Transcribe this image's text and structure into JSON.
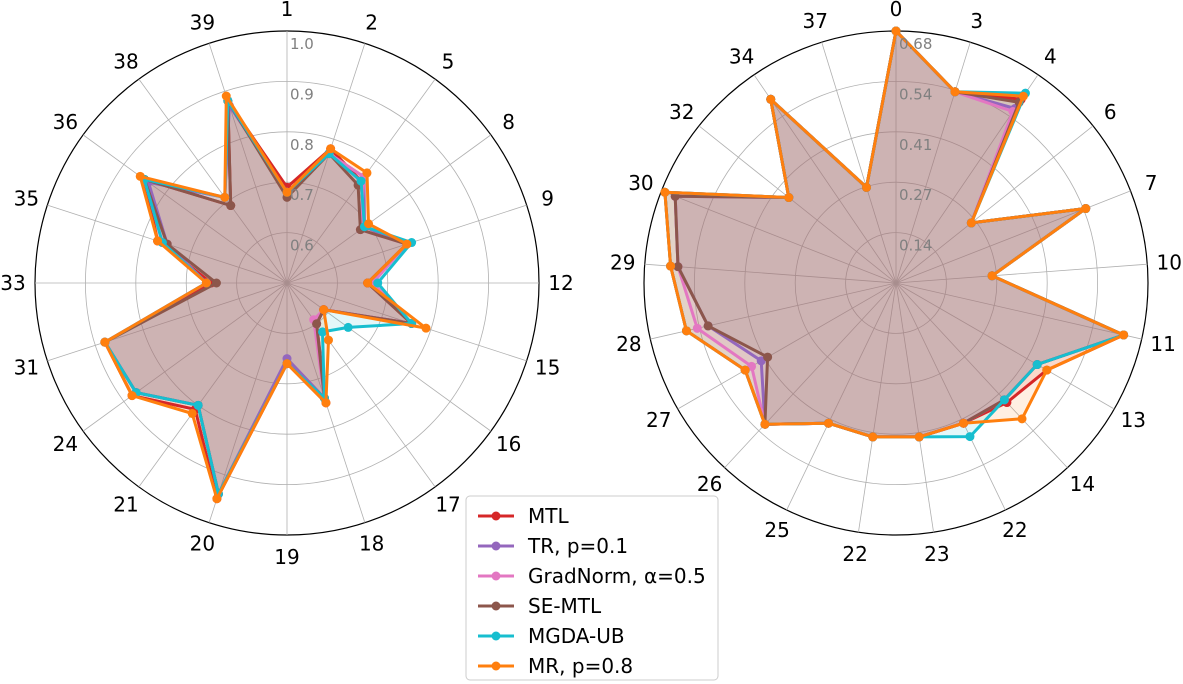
{
  "chart_data": [
    {
      "type": "radar",
      "r_range": [
        0.5,
        1.0
      ],
      "r_ticks": [
        "0.6",
        "0.7",
        "0.8",
        "0.9",
        "1.0"
      ],
      "r_tick_values": [
        0.6,
        0.7,
        0.8,
        0.9,
        1.0
      ],
      "categories": [
        "1",
        "2",
        "5",
        "8",
        "9",
        "12",
        "15",
        "16",
        "17",
        "18",
        "19",
        "20",
        "21",
        "24",
        "31",
        "33",
        "35",
        "36",
        "38",
        "39"
      ],
      "series": [
        {
          "name": "MTL",
          "values": [
            0.69,
            0.78,
            0.75,
            0.69,
            0.75,
            0.66,
            0.76,
            0.59,
            0.6,
            0.75,
            0.66,
            0.95,
            0.81,
            0.88,
            0.88,
            0.65,
            0.77,
            0.85,
            0.69,
            0.88
          ]
        },
        {
          "name": "TR, p=0.1",
          "values": [
            0.68,
            0.77,
            0.76,
            0.69,
            0.75,
            0.67,
            0.76,
            0.59,
            0.6,
            0.74,
            0.65,
            0.94,
            0.8,
            0.87,
            0.88,
            0.66,
            0.75,
            0.84,
            0.71,
            0.87
          ]
        },
        {
          "name": "GradNorm, α=0.5",
          "values": [
            0.68,
            0.77,
            0.76,
            0.68,
            0.75,
            0.67,
            0.76,
            0.59,
            0.59,
            0.74,
            0.66,
            0.94,
            0.8,
            0.87,
            0.88,
            0.66,
            0.76,
            0.85,
            0.71,
            0.88
          ]
        },
        {
          "name": "SE-MTL",
          "values": [
            0.67,
            0.77,
            0.74,
            0.68,
            0.75,
            0.66,
            0.76,
            0.59,
            0.6,
            0.74,
            0.66,
            0.94,
            0.8,
            0.87,
            0.88,
            0.64,
            0.75,
            0.85,
            0.69,
            0.88
          ]
        },
        {
          "name": "MGDA-UB",
          "values": [
            0.68,
            0.77,
            0.75,
            0.69,
            0.76,
            0.68,
            0.76,
            0.65,
            0.62,
            0.74,
            0.66,
            0.94,
            0.8,
            0.87,
            0.88,
            0.66,
            0.76,
            0.85,
            0.71,
            0.88
          ]
        },
        {
          "name": "MR, p=0.8",
          "values": [
            0.68,
            0.78,
            0.77,
            0.7,
            0.75,
            0.66,
            0.79,
            0.59,
            0.64,
            0.75,
            0.66,
            0.95,
            0.82,
            0.88,
            0.88,
            0.66,
            0.77,
            0.86,
            0.71,
            0.89
          ]
        }
      ]
    },
    {
      "type": "radar",
      "r_range": [
        0.0,
        0.68
      ],
      "r_ticks": [
        "0.14",
        "0.27",
        "0.41",
        "0.54",
        "0.68"
      ],
      "r_tick_values": [
        0.136,
        0.272,
        0.408,
        0.544,
        0.68
      ],
      "categories": [
        "0",
        "3",
        "4",
        "6",
        "7",
        "10",
        "11",
        "13",
        "14",
        "22",
        "23",
        "22b",
        "25",
        "26",
        "27",
        "28",
        "29",
        "30",
        "32",
        "34",
        "37"
      ],
      "series": [
        {
          "name": "MTL",
          "values": [
            0.68,
            0.54,
            0.6,
            0.26,
            0.55,
            0.26,
            0.63,
            0.47,
            0.44,
            0.42,
            0.42,
            0.42,
            0.42,
            0.52,
            0.47,
            0.58,
            0.61,
            0.67,
            0.37,
            0.6,
            0.27
          ]
        },
        {
          "name": "TR, p=0.1",
          "values": [
            0.68,
            0.54,
            0.57,
            0.26,
            0.55,
            0.26,
            0.63,
            0.44,
            0.43,
            0.42,
            0.42,
            0.42,
            0.42,
            0.52,
            0.42,
            0.52,
            0.59,
            0.64,
            0.37,
            0.6,
            0.27
          ]
        },
        {
          "name": "GradNorm, α=0.5",
          "values": [
            0.68,
            0.54,
            0.56,
            0.26,
            0.55,
            0.26,
            0.63,
            0.44,
            0.43,
            0.42,
            0.42,
            0.42,
            0.42,
            0.52,
            0.45,
            0.55,
            0.59,
            0.64,
            0.37,
            0.6,
            0.27
          ]
        },
        {
          "name": "SE-MTL",
          "values": [
            0.68,
            0.54,
            0.59,
            0.26,
            0.55,
            0.26,
            0.63,
            0.44,
            0.43,
            0.42,
            0.42,
            0.42,
            0.42,
            0.52,
            0.4,
            0.52,
            0.59,
            0.64,
            0.37,
            0.6,
            0.27
          ]
        },
        {
          "name": "MGDA-UB",
          "values": [
            0.68,
            0.54,
            0.62,
            0.26,
            0.55,
            0.26,
            0.63,
            0.44,
            0.43,
            0.46,
            0.42,
            0.42,
            0.42,
            0.52,
            0.47,
            0.58,
            0.61,
            0.67,
            0.37,
            0.6,
            0.27
          ]
        },
        {
          "name": "MR, p=0.8",
          "values": [
            0.68,
            0.54,
            0.61,
            0.26,
            0.55,
            0.26,
            0.63,
            0.47,
            0.5,
            0.42,
            0.42,
            0.42,
            0.42,
            0.52,
            0.47,
            0.58,
            0.61,
            0.67,
            0.37,
            0.6,
            0.27
          ]
        }
      ]
    }
  ],
  "series_colors": {
    "MTL": "#d62728",
    "TR, p=0.1": "#9467bd",
    "GradNorm, α=0.5": "#e377c2",
    "SE-MTL": "#8c564b",
    "MGDA-UB": "#17becf",
    "MR, p=0.8": "#ff7f0e"
  },
  "legend": {
    "placement": "bottom-center",
    "entries": [
      "MTL",
      "TR, p=0.1",
      "GradNorm, α=0.5",
      "SE-MTL",
      "MGDA-UB",
      "MR, p=0.8"
    ]
  },
  "fill_color": "#8c564b",
  "grid": true
}
